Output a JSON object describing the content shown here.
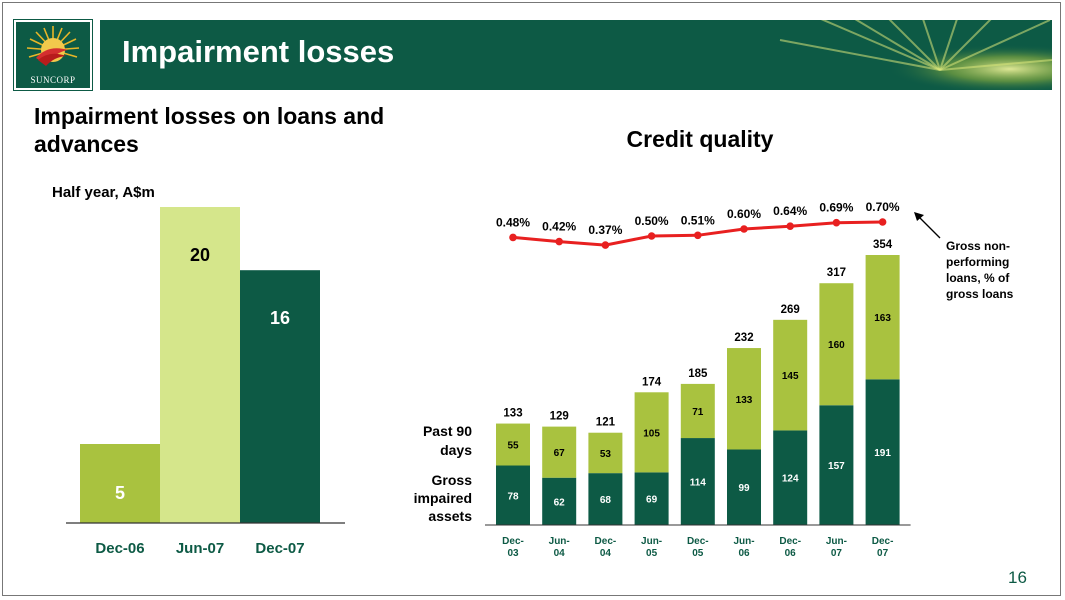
{
  "slide": {
    "logo_text": "SUNCORP",
    "title": "Impairment losses",
    "left_heading": "Impairment losses on loans and advances",
    "left_unit_label": "Half year, A$m",
    "right_heading": "Credit quality",
    "page_number": "16"
  },
  "colors": {
    "dark_green": "#0d5a45",
    "lime": "#a9c23f",
    "light_lime": "#d5e68b",
    "red_line": "#e82020"
  },
  "chart_data": [
    {
      "type": "bar",
      "title": "Impairment losses on loans and advances",
      "ylabel": "Half year, A$m",
      "categories": [
        "Dec-06",
        "Jun-07",
        "Dec-07"
      ],
      "values": [
        5,
        20,
        16
      ],
      "colors": [
        "#a9c23f",
        "#d5e68b",
        "#0d5a45"
      ],
      "ylim": [
        0,
        20
      ],
      "grid": false,
      "legend": "none"
    },
    {
      "type": "bar",
      "title": "Credit quality",
      "stacked": true,
      "categories": [
        [
          "Dec-",
          "03"
        ],
        [
          "Jun-",
          "04"
        ],
        [
          "Dec-",
          "04"
        ],
        [
          "Jun-",
          "05"
        ],
        [
          "Dec-",
          "05"
        ],
        [
          "Jun-",
          "06"
        ],
        [
          "Dec-",
          "06"
        ],
        [
          "Jun-",
          "07"
        ],
        [
          "Dec-",
          "07"
        ]
      ],
      "series": [
        {
          "name": "Gross impaired assets",
          "label_lines": [
            "Gross",
            "impaired",
            "assets"
          ],
          "color": "#0d5a45",
          "values": [
            78,
            62,
            68,
            69,
            114,
            99,
            124,
            157,
            191
          ]
        },
        {
          "name": "Past 90 days",
          "label_lines": [
            "Past 90",
            "days"
          ],
          "color": "#a9c23f",
          "values": [
            55,
            67,
            53,
            105,
            71,
            133,
            145,
            160,
            163
          ]
        }
      ],
      "totals": [
        133,
        129,
        121,
        174,
        185,
        232,
        269,
        317,
        354
      ],
      "line": {
        "name": "Gross non-performing loans, % of gross loans",
        "label_lines": [
          "Gross non-",
          "performing",
          "loans, % of",
          "gross loans"
        ],
        "color": "#e82020",
        "values": [
          0.48,
          0.42,
          0.37,
          0.5,
          0.51,
          0.6,
          0.64,
          0.69,
          0.7
        ],
        "labels": [
          "0.48%",
          "0.42%",
          "0.37%",
          "0.50%",
          "0.51%",
          "0.60%",
          "0.64%",
          "0.69%",
          "0.70%"
        ]
      },
      "ylim": [
        0,
        354
      ],
      "grid": false,
      "legend": "left labels"
    }
  ]
}
